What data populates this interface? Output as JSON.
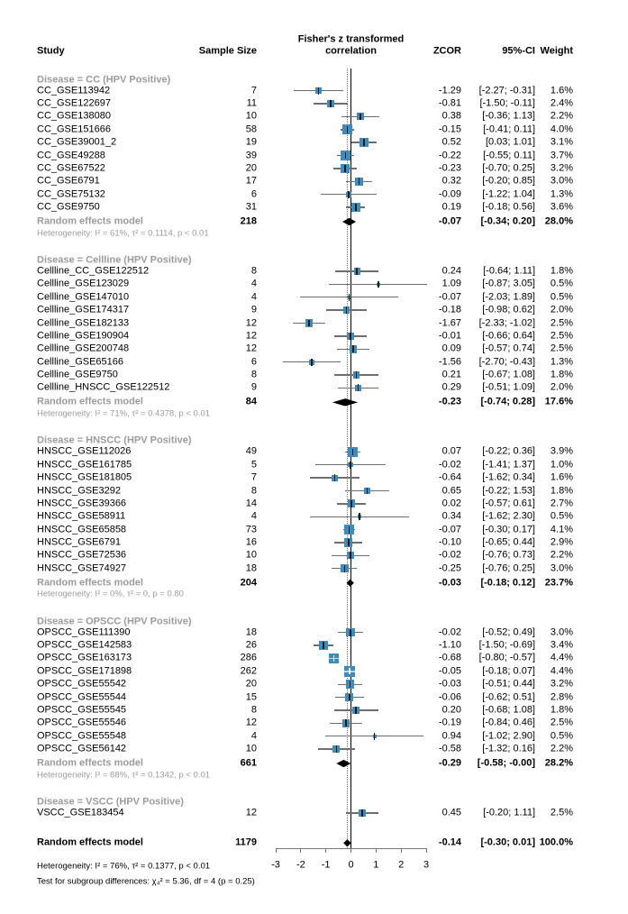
{
  "chart_data": {
    "type": "forest",
    "columns": {
      "study": "Study",
      "n": "Sample Size",
      "effect_l1": "Fisher's z transformed",
      "effect_l2": "correlation",
      "zcor": "ZCOR",
      "ci": "95%-CI",
      "weight": "Weight"
    },
    "axis": {
      "min": -3,
      "max": 3,
      "zero": 0,
      "overall_effect": -0.14,
      "ticks": [
        "-3",
        "-2",
        "-1",
        "0",
        "1",
        "2",
        "3"
      ]
    },
    "colors": {
      "square": "#3e8cbe",
      "ci_line": "#6e6e6e",
      "diamond": "#000000",
      "subgroup_text": "#9c9c9c"
    },
    "groups": [
      {
        "label": "Disease = CC (HPV Positive)",
        "studies": [
          {
            "study": "CC_GSE113942",
            "n": "7",
            "z": -1.29,
            "lo": -2.27,
            "hi": -0.31,
            "zcor": "-1.29",
            "ci": "[-2.27; -0.31]",
            "weight": "1.6%"
          },
          {
            "study": "CC_GSE122697",
            "n": "11",
            "z": -0.81,
            "lo": -1.5,
            "hi": -0.11,
            "zcor": "-0.81",
            "ci": "[-1.50; -0.11]",
            "weight": "2.4%"
          },
          {
            "study": "CC_GSE138080",
            "n": "10",
            "z": 0.38,
            "lo": -0.36,
            "hi": 1.13,
            "zcor": "0.38",
            "ci": "[-0.36; 1.13]",
            "weight": "2.2%"
          },
          {
            "study": "CC_GSE151666",
            "n": "58",
            "z": -0.15,
            "lo": -0.41,
            "hi": 0.11,
            "zcor": "-0.15",
            "ci": "[-0.41; 0.11]",
            "weight": "4.0%"
          },
          {
            "study": "CC_GSE39001_2",
            "n": "19",
            "z": 0.52,
            "lo": 0.03,
            "hi": 1.01,
            "zcor": "0.52",
            "ci": "[0.03; 1.01]",
            "weight": "3.1%"
          },
          {
            "study": "CC_GSE49288",
            "n": "39",
            "z": -0.22,
            "lo": -0.55,
            "hi": 0.11,
            "zcor": "-0.22",
            "ci": "[-0.55; 0.11]",
            "weight": "3.7%"
          },
          {
            "study": "CC_GSE67522",
            "n": "20",
            "z": -0.23,
            "lo": -0.7,
            "hi": 0.25,
            "zcor": "-0.23",
            "ci": "[-0.70; 0.25]",
            "weight": "3.2%"
          },
          {
            "study": "CC_GSE6791",
            "n": "17",
            "z": 0.32,
            "lo": -0.2,
            "hi": 0.85,
            "zcor": "0.32",
            "ci": "[-0.20; 0.85]",
            "weight": "3.0%"
          },
          {
            "study": "CC_GSE75132",
            "n": "6",
            "z": -0.09,
            "lo": -1.22,
            "hi": 1.04,
            "zcor": "-0.09",
            "ci": "[-1.22; 1.04]",
            "weight": "1.3%"
          },
          {
            "study": "CC_GSE9750",
            "n": "31",
            "z": 0.19,
            "lo": -0.18,
            "hi": 0.56,
            "zcor": "0.19",
            "ci": "[-0.18; 0.56]",
            "weight": "3.6%"
          }
        ],
        "summary": {
          "study": "Random effects model",
          "n": "218",
          "z": -0.07,
          "lo": -0.34,
          "hi": 0.2,
          "zcor": "-0.07",
          "ci": "[-0.34; 0.20]",
          "weight": "28.0%"
        },
        "heterogeneity": "Heterogeneity: I² = 61%, τ² = 0.1114, p < 0.01"
      },
      {
        "label": "Disease = Cellline (HPV Positive)",
        "studies": [
          {
            "study": "Cellline_CC_GSE122512",
            "n": "8",
            "z": 0.24,
            "lo": -0.64,
            "hi": 1.11,
            "zcor": "0.24",
            "ci": "[-0.64; 1.11]",
            "weight": "1.8%"
          },
          {
            "study": "Cellline_GSE123029",
            "n": "4",
            "z": 1.09,
            "lo": -0.87,
            "hi": 3.05,
            "zcor": "1.09",
            "ci": "[-0.87; 3.05]",
            "weight": "0.5%"
          },
          {
            "study": "Cellline_GSE147010",
            "n": "4",
            "z": -0.07,
            "lo": -2.03,
            "hi": 1.89,
            "zcor": "-0.07",
            "ci": "[-2.03; 1.89]",
            "weight": "0.5%"
          },
          {
            "study": "Cellline_GSE174317",
            "n": "9",
            "z": -0.18,
            "lo": -0.98,
            "hi": 0.62,
            "zcor": "-0.18",
            "ci": "[-0.98; 0.62]",
            "weight": "2.0%"
          },
          {
            "study": "Cellline_GSE182133",
            "n": "12",
            "z": -1.67,
            "lo": -2.33,
            "hi": -1.02,
            "zcor": "-1.67",
            "ci": "[-2.33; -1.02]",
            "weight": "2.5%"
          },
          {
            "study": "Cellline_GSE190904",
            "n": "12",
            "z": -0.01,
            "lo": -0.66,
            "hi": 0.64,
            "zcor": "-0.01",
            "ci": "[-0.66; 0.64]",
            "weight": "2.5%"
          },
          {
            "study": "Cellline_GSE200748",
            "n": "12",
            "z": 0.09,
            "lo": -0.57,
            "hi": 0.74,
            "zcor": "0.09",
            "ci": "[-0.57; 0.74]",
            "weight": "2.5%"
          },
          {
            "study": "Cellline_GSE65166",
            "n": "6",
            "z": -1.56,
            "lo": -2.7,
            "hi": -0.43,
            "zcor": "-1.56",
            "ci": "[-2.70; -0.43]",
            "weight": "1.3%"
          },
          {
            "study": "Cellline_GSE9750",
            "n": "8",
            "z": 0.21,
            "lo": -0.67,
            "hi": 1.08,
            "zcor": "0.21",
            "ci": "[-0.67; 1.08]",
            "weight": "1.8%"
          },
          {
            "study": "Cellline_HNSCC_GSE122512",
            "n": "9",
            "z": 0.29,
            "lo": -0.51,
            "hi": 1.09,
            "zcor": "0.29",
            "ci": "[-0.51; 1.09]",
            "weight": "2.0%"
          }
        ],
        "summary": {
          "study": "Random effects model",
          "n": "84",
          "z": -0.23,
          "lo": -0.74,
          "hi": 0.28,
          "zcor": "-0.23",
          "ci": "[-0.74; 0.28]",
          "weight": "17.6%"
        },
        "heterogeneity": "Heterogeneity: I² = 71%, τ² = 0.4378, p < 0.01"
      },
      {
        "label": "Disease = HNSCC (HPV Positive)",
        "studies": [
          {
            "study": "HNSCC_GSE112026",
            "n": "49",
            "z": 0.07,
            "lo": -0.22,
            "hi": 0.36,
            "zcor": "0.07",
            "ci": "[-0.22; 0.36]",
            "weight": "3.9%"
          },
          {
            "study": "HNSCC_GSE161785",
            "n": "5",
            "z": -0.02,
            "lo": -1.41,
            "hi": 1.37,
            "zcor": "-0.02",
            "ci": "[-1.41; 1.37]",
            "weight": "1.0%"
          },
          {
            "study": "HNSCC_GSE181805",
            "n": "7",
            "z": -0.64,
            "lo": -1.62,
            "hi": 0.34,
            "zcor": "-0.64",
            "ci": "[-1.62; 0.34]",
            "weight": "1.6%"
          },
          {
            "study": "HNSCC_GSE3292",
            "n": "8",
            "z": 0.65,
            "lo": -0.22,
            "hi": 1.53,
            "zcor": "0.65",
            "ci": "[-0.22; 1.53]",
            "weight": "1.8%"
          },
          {
            "study": "HNSCC_GSE39366",
            "n": "14",
            "z": 0.02,
            "lo": -0.57,
            "hi": 0.61,
            "zcor": "0.02",
            "ci": "[-0.57; 0.61]",
            "weight": "2.7%"
          },
          {
            "study": "HNSCC_GSE58911",
            "n": "4",
            "z": 0.34,
            "lo": -1.62,
            "hi": 2.3,
            "zcor": "0.34",
            "ci": "[-1.62; 2.30]",
            "weight": "0.5%"
          },
          {
            "study": "HNSCC_GSE65858",
            "n": "73",
            "z": -0.07,
            "lo": -0.3,
            "hi": 0.17,
            "zcor": "-0.07",
            "ci": "[-0.30; 0.17]",
            "weight": "4.1%"
          },
          {
            "study": "HNSCC_GSE6791",
            "n": "16",
            "z": -0.1,
            "lo": -0.65,
            "hi": 0.44,
            "zcor": "-0.10",
            "ci": "[-0.65; 0.44]",
            "weight": "2.9%"
          },
          {
            "study": "HNSCC_GSE72536",
            "n": "10",
            "z": -0.02,
            "lo": -0.76,
            "hi": 0.73,
            "zcor": "-0.02",
            "ci": "[-0.76; 0.73]",
            "weight": "2.2%"
          },
          {
            "study": "HNSCC_GSE74927",
            "n": "18",
            "z": -0.25,
            "lo": -0.76,
            "hi": 0.25,
            "zcor": "-0.25",
            "ci": "[-0.76; 0.25]",
            "weight": "3.0%"
          }
        ],
        "summary": {
          "study": "Random effects model",
          "n": "204",
          "z": -0.03,
          "lo": -0.18,
          "hi": 0.12,
          "zcor": "-0.03",
          "ci": "[-0.18; 0.12]",
          "weight": "23.7%"
        },
        "heterogeneity": "Heterogeneity: I² = 0%, τ² = 0, p = 0.80"
      },
      {
        "label": "Disease = OPSCC (HPV Positive)",
        "studies": [
          {
            "study": "OPSCC_GSE111390",
            "n": "18",
            "z": -0.02,
            "lo": -0.52,
            "hi": 0.49,
            "zcor": "-0.02",
            "ci": "[-0.52; 0.49]",
            "weight": "3.0%"
          },
          {
            "study": "OPSCC_GSE142583",
            "n": "26",
            "z": -1.1,
            "lo": -1.5,
            "hi": -0.69,
            "zcor": "-1.10",
            "ci": "[-1.50; -0.69]",
            "weight": "3.4%"
          },
          {
            "study": "OPSCC_GSE163173",
            "n": "286",
            "z": -0.68,
            "lo": -0.8,
            "hi": -0.57,
            "zcor": "-0.68",
            "ci": "[-0.80; -0.57]",
            "weight": "4.4%"
          },
          {
            "study": "OPSCC_GSE171898",
            "n": "262",
            "z": -0.05,
            "lo": -0.18,
            "hi": 0.07,
            "zcor": "-0.05",
            "ci": "[-0.18; 0.07]",
            "weight": "4.4%"
          },
          {
            "study": "OPSCC_GSE55542",
            "n": "20",
            "z": -0.03,
            "lo": -0.51,
            "hi": 0.44,
            "zcor": "-0.03",
            "ci": "[-0.51; 0.44]",
            "weight": "3.2%"
          },
          {
            "study": "OPSCC_GSE55544",
            "n": "15",
            "z": -0.06,
            "lo": -0.62,
            "hi": 0.51,
            "zcor": "-0.06",
            "ci": "[-0.62; 0.51]",
            "weight": "2.8%"
          },
          {
            "study": "OPSCC_GSE55545",
            "n": "8",
            "z": 0.2,
            "lo": -0.68,
            "hi": 1.08,
            "zcor": "0.20",
            "ci": "[-0.68; 1.08]",
            "weight": "1.8%"
          },
          {
            "study": "OPSCC_GSE55546",
            "n": "12",
            "z": -0.19,
            "lo": -0.84,
            "hi": 0.46,
            "zcor": "-0.19",
            "ci": "[-0.84; 0.46]",
            "weight": "2.5%"
          },
          {
            "study": "OPSCC_GSE55548",
            "n": "4",
            "z": 0.94,
            "lo": -1.02,
            "hi": 2.9,
            "zcor": "0.94",
            "ci": "[-1.02; 2.90]",
            "weight": "0.5%"
          },
          {
            "study": "OPSCC_GSE56142",
            "n": "10",
            "z": -0.58,
            "lo": -1.32,
            "hi": 0.16,
            "zcor": "-0.58",
            "ci": "[-1.32; 0.16]",
            "weight": "2.2%"
          }
        ],
        "summary": {
          "study": "Random effects model",
          "n": "661",
          "z": -0.29,
          "lo": -0.58,
          "hi": 0.0,
          "zcor": "-0.29",
          "ci": "[-0.58; -0.00]",
          "weight": "28.2%"
        },
        "heterogeneity": "Heterogeneity: I² = 88%, τ² = 0.1342, p < 0.01"
      },
      {
        "label": "Disease = VSCC (HPV Positive)",
        "studies": [
          {
            "study": "VSCC_GSE183454",
            "n": "12",
            "z": 0.45,
            "lo": -0.2,
            "hi": 1.11,
            "zcor": "0.45",
            "ci": "[-0.20; 1.11]",
            "weight": "2.5%"
          }
        ]
      }
    ],
    "overall": {
      "study": "Random effects model",
      "n": "1179",
      "z": -0.14,
      "lo": -0.3,
      "hi": 0.01,
      "zcor": "-0.14",
      "ci": "[-0.30; 0.01]",
      "weight": "100.0%"
    },
    "footnotes": [
      "Heterogeneity: I² = 76%, τ² = 0.1377, p < 0.01",
      "Test for subgroup differences: χ₄² = 5.36, df = 4 (p = 0.25)"
    ]
  }
}
